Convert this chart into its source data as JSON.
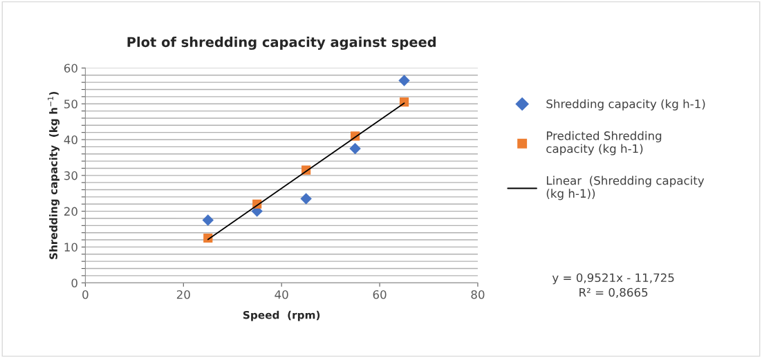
{
  "chart_data": {
    "type": "scatter",
    "title": "Plot of shredding capacity against speed",
    "xlabel": "Speed  (rpm)",
    "ylabel": "Shredding capacity  (kg h$^{−1}$)",
    "series": [
      {
        "name": "Shredding capacity (kg h-1)",
        "color": "#4472c4",
        "marker": "diamond",
        "x": [
          25,
          35,
          45,
          55,
          65
        ],
        "values": [
          17.5,
          20,
          23.5,
          37.5,
          56.5
        ]
      },
      {
        "name": "Predicted Shredding capacity (kg h-1)",
        "color": "#ed7d31",
        "marker": "square",
        "x": [
          25,
          35,
          45,
          55,
          65
        ],
        "values": [
          12.5,
          22,
          31.5,
          41,
          50.5
        ]
      },
      {
        "name": "Linear  (Shredding capacity (kg h-1))",
        "type": "line",
        "color": "#000000",
        "marker": "none",
        "x": [
          25,
          65
        ],
        "values": [
          12.1,
          50.2
        ]
      }
    ],
    "xlim": [
      0,
      80
    ],
    "xticks": [
      0,
      20,
      40,
      60,
      80
    ],
    "ylim": [
      0,
      60
    ],
    "yticks": [
      0,
      {
        "value": 2,
        "label": null
      },
      {
        "value": 4,
        "label": null
      },
      {
        "value": 6,
        "label": null
      },
      {
        "value": 8,
        "label": null
      },
      10,
      {
        "value": 12,
        "label": null
      },
      {
        "value": 14,
        "label": null
      },
      {
        "value": 16,
        "label": null
      },
      {
        "value": 18,
        "label": null
      },
      20,
      {
        "value": 22,
        "label": null
      },
      {
        "value": 24,
        "label": null
      },
      {
        "value": 26,
        "label": null
      },
      {
        "value": 28,
        "label": null
      },
      30,
      {
        "value": 32,
        "label": null
      },
      {
        "value": 34,
        "label": null
      },
      {
        "value": 36,
        "label": null
      },
      {
        "value": 38,
        "label": null
      },
      40,
      {
        "value": 42,
        "label": null
      },
      {
        "value": 44,
        "label": null
      },
      {
        "value": 46,
        "label": null
      },
      {
        "value": 48,
        "label": null
      },
      50,
      {
        "value": 52,
        "label": null
      },
      {
        "value": 54,
        "label": null
      },
      {
        "value": 56,
        "label": null
      },
      {
        "value": 58,
        "label": null
      },
      60
    ],
    "grid": "y",
    "legend": "right",
    "annotations": [
      "y = 0,9521x - 11,725\nR² = 0,8665"
    ]
  }
}
